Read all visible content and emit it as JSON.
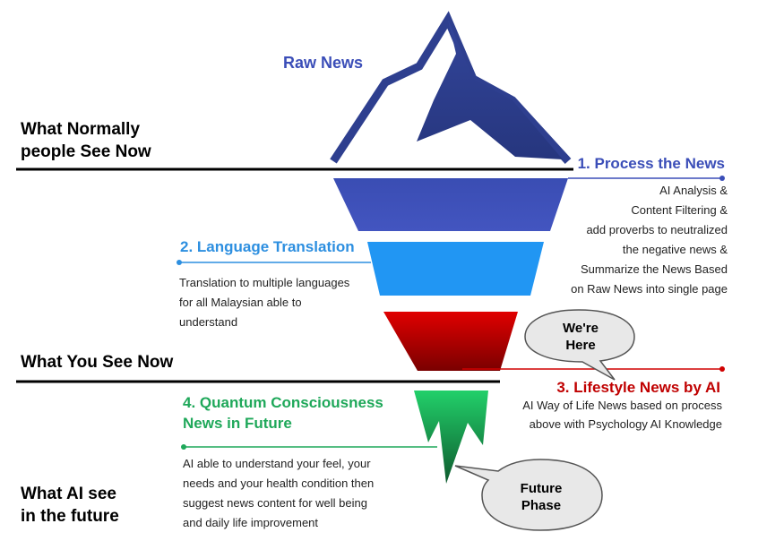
{
  "tip_label": "Raw News",
  "side_labels": {
    "normal": [
      "What Normally",
      "people See Now"
    ],
    "now": "What You See Now",
    "future": [
      "What AI see",
      "in the future"
    ]
  },
  "steps": [
    {
      "title": "1. Process the News",
      "lines": [
        "AI Analysis &",
        "Content Filtering &",
        "add proverbs to neutralized",
        "the negative news &",
        "Summarize the News Based",
        "on Raw News into single page"
      ],
      "color": "#3B4EB8"
    },
    {
      "title": "2. Language Translation",
      "lines": [
        "Translation to multiple languages",
        "for all Malaysian able to",
        "understand"
      ],
      "color": "#2D8FE0"
    },
    {
      "title": "3. Lifestyle News by AI",
      "lines": [
        "AI Way of Life News based on process",
        "above with Psychology AI Knowledge"
      ],
      "color": "#C00000"
    },
    {
      "title_lines": [
        "4. Quantum Consciousness",
        "News in Future"
      ],
      "lines": [
        "AI able to understand your feel, your",
        "needs and your health condition then",
        "suggest news content for well being",
        "and daily life improvement"
      ],
      "color": "#1FA85A"
    }
  ],
  "callouts": {
    "here": [
      "We're",
      "Here"
    ],
    "future": [
      "Future",
      "Phase"
    ]
  },
  "colors": {
    "iceberg_tip": "#2E3F8F",
    "layer1": "#3F51B5",
    "layer2": "#2196F3",
    "layer3": "#D00000",
    "layer4": "#22C55E",
    "callout_fill": "#E8E8E8"
  }
}
